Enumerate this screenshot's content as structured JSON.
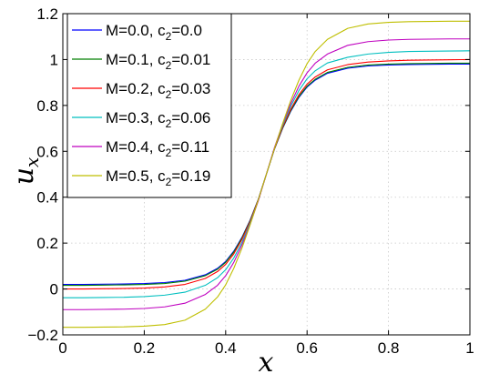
{
  "chart_data": {
    "type": "line",
    "xlabel": "x",
    "ylabel_main": "u",
    "ylabel_sub": "x",
    "xlim": [
      0,
      1
    ],
    "ylim": [
      -0.2,
      1.2
    ],
    "xticks": [
      0,
      0.2,
      0.4,
      0.6,
      0.8,
      1
    ],
    "xtick_labels": [
      "0",
      "0.2",
      "0.4",
      "0.6",
      "0.8",
      "1"
    ],
    "yticks": [
      -0.2,
      0,
      0.2,
      0.4,
      0.6,
      0.8,
      1,
      1.2
    ],
    "ytick_labels": [
      "−0.2",
      "0",
      "0.2",
      "0.4",
      "0.6",
      "0.8",
      "1",
      "1.2"
    ],
    "grid": true,
    "legend_position": "top-left",
    "x": [
      0,
      0.05,
      0.1,
      0.15,
      0.2,
      0.25,
      0.3,
      0.35,
      0.38,
      0.4,
      0.42,
      0.44,
      0.46,
      0.48,
      0.5,
      0.52,
      0.54,
      0.56,
      0.58,
      0.6,
      0.62,
      0.65,
      0.7,
      0.75,
      0.8,
      0.85,
      0.9,
      0.95,
      1
    ],
    "series": [
      {
        "name": "M=0.0, c2=0.0",
        "legend_main": "M=0.0, c",
        "legend_sub": "2",
        "legend_tail": "=0.0",
        "color": "#0000ff",
        "values": [
          0.02,
          0.02,
          0.021,
          0.022,
          0.024,
          0.028,
          0.038,
          0.062,
          0.09,
          0.12,
          0.165,
          0.225,
          0.3,
          0.39,
          0.5,
          0.61,
          0.7,
          0.775,
          0.835,
          0.88,
          0.91,
          0.94,
          0.962,
          0.972,
          0.976,
          0.978,
          0.979,
          0.98,
          0.98
        ]
      },
      {
        "name": "M=0.1, c2=0.01",
        "legend_main": "M=0.1, c",
        "legend_sub": "2",
        "legend_tail": "=0.01",
        "color": "#007f00",
        "values": [
          0.016,
          0.016,
          0.017,
          0.018,
          0.02,
          0.024,
          0.034,
          0.058,
          0.086,
          0.116,
          0.161,
          0.222,
          0.298,
          0.389,
          0.5,
          0.611,
          0.702,
          0.778,
          0.839,
          0.884,
          0.914,
          0.944,
          0.966,
          0.976,
          0.98,
          0.982,
          0.983,
          0.984,
          0.984
        ]
      },
      {
        "name": "M=0.2, c2=0.03",
        "legend_main": "M=0.2, c",
        "legend_sub": "2",
        "legend_tail": "=0.03",
        "color": "#ff0000",
        "values": [
          0.0,
          0.0,
          0.001,
          0.002,
          0.004,
          0.009,
          0.02,
          0.046,
          0.076,
          0.107,
          0.153,
          0.216,
          0.294,
          0.388,
          0.5,
          0.612,
          0.706,
          0.784,
          0.847,
          0.893,
          0.924,
          0.955,
          0.978,
          0.989,
          0.994,
          0.997,
          0.998,
          0.999,
          1.0
        ]
      },
      {
        "name": "M=0.3, c2=0.06",
        "legend_main": "M=0.3, c",
        "legend_sub": "2",
        "legend_tail": "=0.06",
        "color": "#00bfbf",
        "values": [
          -0.038,
          -0.038,
          -0.037,
          -0.036,
          -0.033,
          -0.027,
          -0.014,
          0.016,
          0.049,
          0.084,
          0.135,
          0.203,
          0.287,
          0.385,
          0.5,
          0.615,
          0.713,
          0.797,
          0.865,
          0.916,
          0.951,
          0.985,
          1.01,
          1.024,
          1.031,
          1.035,
          1.036,
          1.037,
          1.038
        ]
      },
      {
        "name": "M=0.4, c2=0.11",
        "legend_main": "M=0.4, c",
        "legend_sub": "2",
        "legend_tail": "=0.11",
        "color": "#bf00bf",
        "values": [
          -0.09,
          -0.09,
          -0.089,
          -0.088,
          -0.085,
          -0.078,
          -0.062,
          -0.024,
          0.016,
          0.058,
          0.116,
          0.192,
          0.281,
          0.383,
          0.5,
          0.617,
          0.719,
          0.808,
          0.884,
          0.942,
          0.984,
          1.024,
          1.062,
          1.078,
          1.085,
          1.088,
          1.089,
          1.09,
          1.09
        ]
      },
      {
        "name": "M=0.5, c2=0.19",
        "legend_main": "M=0.5, c",
        "legend_sub": "2",
        "legend_tail": "=0.19",
        "color": "#bfbf00",
        "values": [
          -0.167,
          -0.167,
          -0.166,
          -0.165,
          -0.162,
          -0.155,
          -0.136,
          -0.088,
          -0.035,
          0.018,
          0.09,
          0.178,
          0.279,
          0.387,
          0.5,
          0.613,
          0.721,
          0.822,
          0.91,
          0.982,
          1.035,
          1.088,
          1.136,
          1.155,
          1.162,
          1.165,
          1.166,
          1.167,
          1.167
        ]
      }
    ]
  }
}
